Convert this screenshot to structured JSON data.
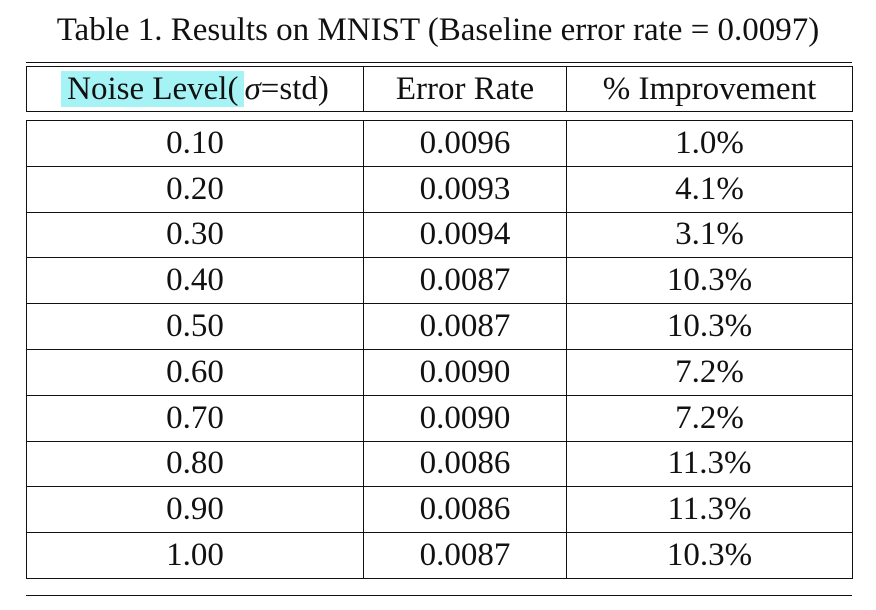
{
  "caption": "Table 1. Results on MNIST (Baseline error rate = 0.0097)",
  "headers": {
    "noise_prefix": "Noise Level(",
    "noise_sigma": "σ",
    "noise_suffix": "=std)",
    "error_rate": "Error Rate",
    "improvement": "% Improvement"
  },
  "highlight_color": "#a6f3f5",
  "rows": [
    {
      "noise": "0.10",
      "error": "0.0096",
      "improvement": "1.0%"
    },
    {
      "noise": "0.20",
      "error": "0.0093",
      "improvement": "4.1%"
    },
    {
      "noise": "0.30",
      "error": "0.0094",
      "improvement": "3.1%"
    },
    {
      "noise": "0.40",
      "error": "0.0087",
      "improvement": "10.3%"
    },
    {
      "noise": "0.50",
      "error": "0.0087",
      "improvement": "10.3%"
    },
    {
      "noise": "0.60",
      "error": "0.0090",
      "improvement": "7.2%"
    },
    {
      "noise": "0.70",
      "error": "0.0090",
      "improvement": "7.2%"
    },
    {
      "noise": "0.80",
      "error": "0.0086",
      "improvement": "11.3%"
    },
    {
      "noise": "0.90",
      "error": "0.0086",
      "improvement": "11.3%"
    },
    {
      "noise": "1.00",
      "error": "0.0087",
      "improvement": "10.3%"
    }
  ]
}
